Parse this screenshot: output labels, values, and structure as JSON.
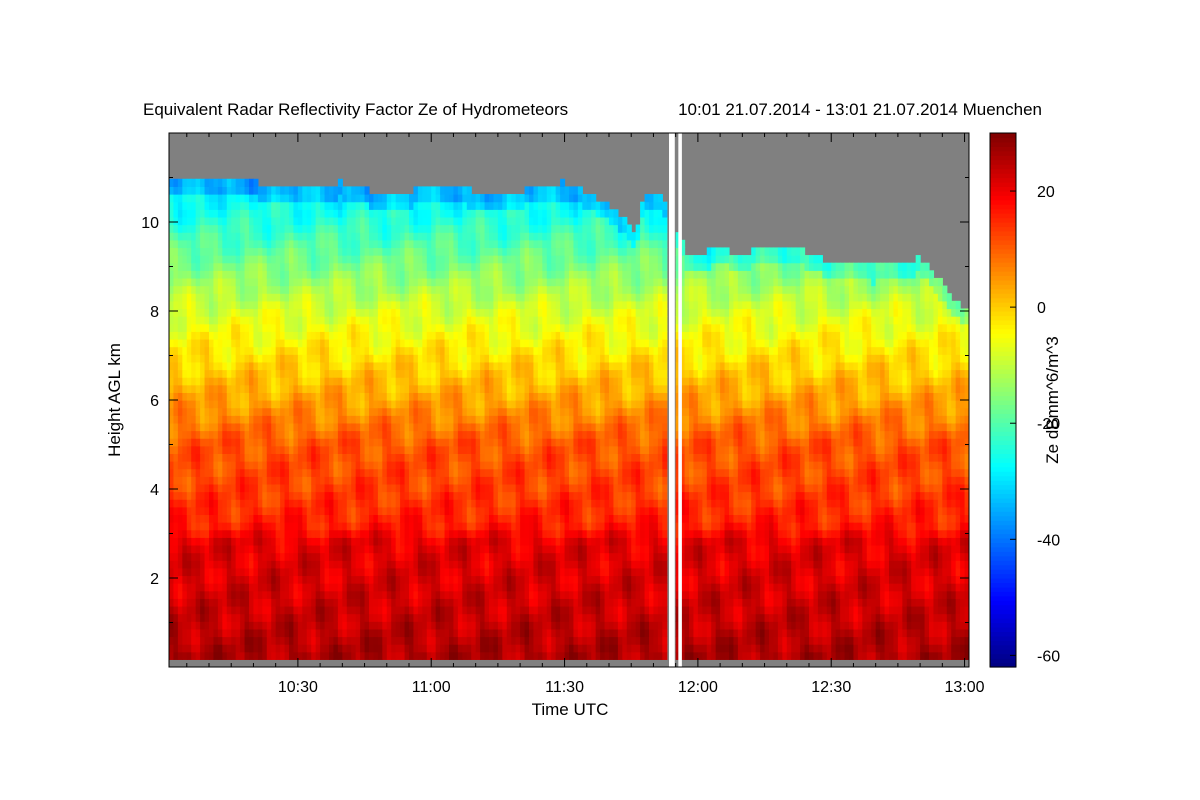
{
  "chart_data": {
    "type": "heatmap",
    "title": "Equivalent Radar Reflectivity Factor Ze of Hydrometeors",
    "time_range": "10:01 21.07.2014 - 13:01 21.07.2014 Muenchen",
    "xlabel": "Time UTC",
    "ylabel": "Height AGL km",
    "x_ticks": [
      "10:30",
      "11:00",
      "11:30",
      "12:00",
      "12:30",
      "13:00"
    ],
    "x_tick_minutes": [
      30,
      60,
      90,
      120,
      150,
      180
    ],
    "xlim_minutes": [
      1,
      181
    ],
    "y_ticks": [
      "2",
      "4",
      "6",
      "8",
      "10"
    ],
    "y_tick_values": [
      2,
      4,
      6,
      8,
      10
    ],
    "ylim": [
      0,
      12
    ],
    "colorbar": {
      "label": "Ze dBmm^6/m^3",
      "ticks": [
        "20",
        "0",
        "-20",
        "-40",
        "-60"
      ],
      "tick_values": [
        20,
        0,
        -20,
        -40,
        -60
      ],
      "range": [
        -62,
        30
      ]
    },
    "no_data_color": "#808080",
    "echo_top_km": {
      "minutes": [
        1,
        10,
        20,
        30,
        40,
        50,
        60,
        70,
        80,
        90,
        100,
        106,
        108,
        112,
        118,
        124,
        130,
        140,
        150,
        160,
        170,
        180
      ],
      "top": [
        10.9,
        11.0,
        10.9,
        10.8,
        10.9,
        10.6,
        10.8,
        10.7,
        10.7,
        10.9,
        10.4,
        9.8,
        10.6,
        10.6,
        9.2,
        9.4,
        9.3,
        9.5,
        9.1,
        9.0,
        9.2,
        8.0
      ]
    },
    "data_gap_minutes": [
      [
        113.5,
        114.8
      ],
      [
        115.6,
        116.4
      ]
    ],
    "layers_dbz": {
      "heights_km": [
        0.3,
        1.0,
        2.0,
        2.8,
        3.2,
        4.0,
        5.0,
        6.0,
        7.0,
        8.0,
        9.0,
        10.0,
        11.0
      ],
      "ze": [
        26,
        24,
        22,
        21,
        16,
        13,
        11,
        4,
        -2,
        -8,
        -16,
        -24,
        -30
      ]
    }
  },
  "colors": {
    "colormap": [
      "#00007f",
      "#0000ff",
      "#007fff",
      "#00ffff",
      "#7fff7f",
      "#ffff00",
      "#ff7f00",
      "#ff0000",
      "#7f0000"
    ]
  }
}
